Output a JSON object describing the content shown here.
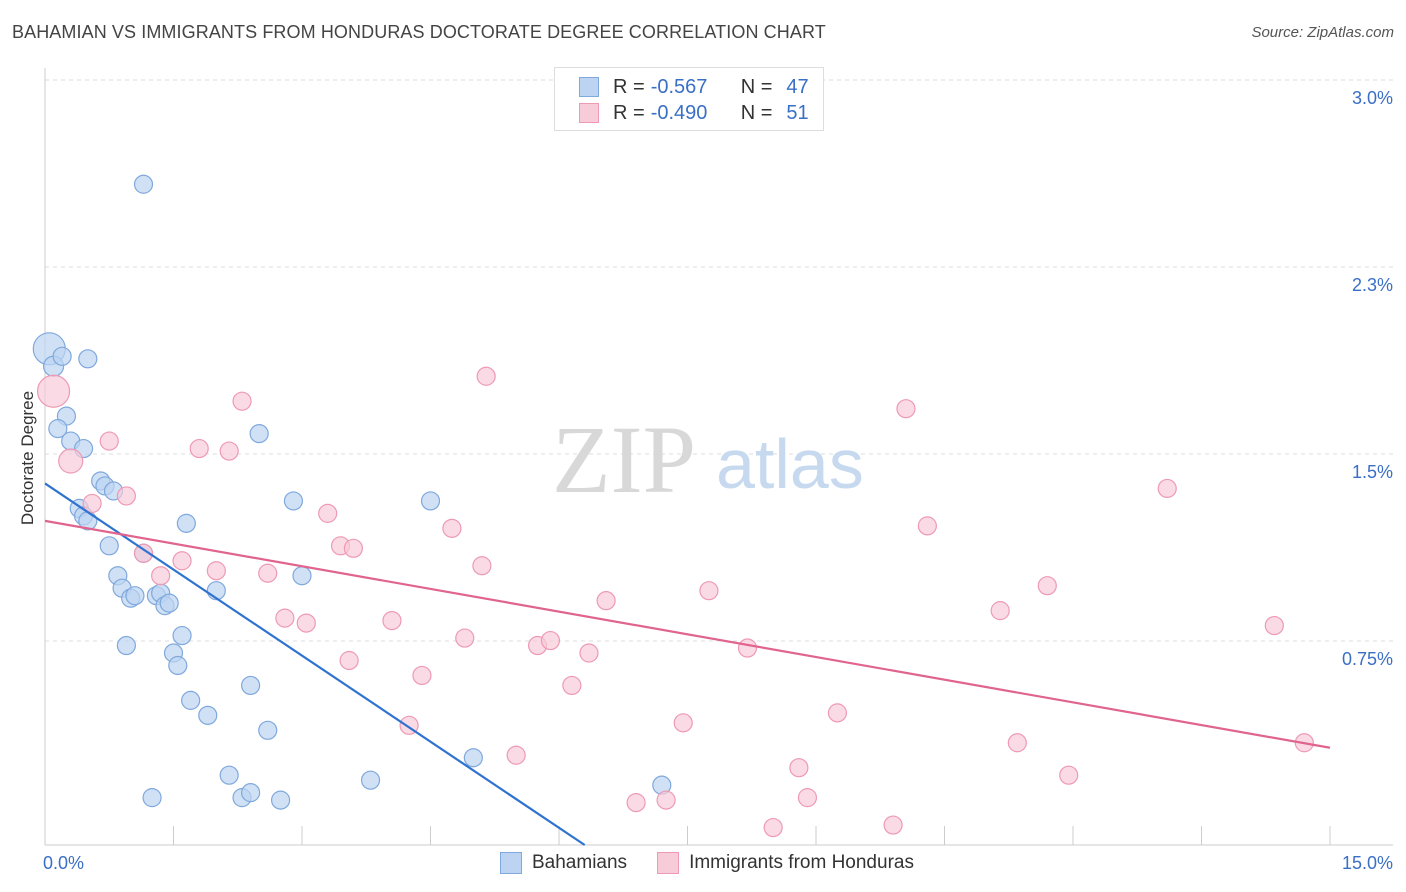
{
  "title": "BAHAMIAN VS IMMIGRANTS FROM HONDURAS DOCTORATE DEGREE CORRELATION CHART",
  "source": "Source: ZipAtlas.com",
  "watermark": {
    "zip": "ZIP",
    "atlas": "atlas"
  },
  "legend": {
    "series1": {
      "r_label": "R =",
      "r_value": "-0.567",
      "n_label": "N =",
      "n_value": "47"
    },
    "series2": {
      "r_label": "R =",
      "r_value": "-0.490",
      "n_label": "N =",
      "n_value": "51"
    }
  },
  "colors": {
    "blue_fill": "#bcd4f2",
    "blue_stroke": "#7fa8dc",
    "blue_line": "#2f73d0",
    "pink_fill": "#f8cbd8",
    "pink_stroke": "#ee9ab4",
    "pink_line": "#e0648e",
    "axis_text": "#3a6fc6",
    "grid": "#dddddd"
  },
  "chart_data": {
    "type": "scatter",
    "title": "BAHAMIAN VS IMMIGRANTS FROM HONDURAS DOCTORATE DEGREE CORRELATION CHART",
    "xlabel": "",
    "ylabel": "Doctorate Degree",
    "xlim": [
      0,
      15
    ],
    "ylim": [
      0,
      3.1
    ],
    "x_tick_labels": [
      {
        "value": 0,
        "label": "0.0%"
      },
      {
        "value": 15,
        "label": "15.0%"
      }
    ],
    "y_tick_labels": [
      {
        "value": 0.75,
        "label": "0.75%"
      },
      {
        "value": 1.5,
        "label": "1.5%"
      },
      {
        "value": 2.25,
        "label": "2.3%"
      },
      {
        "value": 3.0,
        "label": "3.0%"
      }
    ],
    "series": [
      {
        "name": "Bahamians",
        "trendline": {
          "x": [
            0,
            6.3
          ],
          "y": [
            1.45,
            0.0
          ]
        },
        "points": [
          [
            0.05,
            1.99,
            16
          ],
          [
            0.1,
            1.92,
            10
          ],
          [
            0.2,
            1.96,
            9
          ],
          [
            0.25,
            1.72,
            9
          ],
          [
            0.15,
            1.67,
            9
          ],
          [
            0.3,
            1.62,
            9
          ],
          [
            0.5,
            1.95,
            9
          ],
          [
            0.45,
            1.59,
            9
          ],
          [
            0.65,
            1.46,
            9
          ],
          [
            0.7,
            1.44,
            9
          ],
          [
            0.8,
            1.42,
            9
          ],
          [
            0.4,
            1.35,
            9
          ],
          [
            0.45,
            1.32,
            9
          ],
          [
            0.5,
            1.3,
            9
          ],
          [
            0.75,
            1.2,
            9
          ],
          [
            1.15,
            2.65,
            9
          ],
          [
            1.15,
            1.17,
            9
          ],
          [
            0.85,
            1.08,
            9
          ],
          [
            0.9,
            1.03,
            9
          ],
          [
            1.0,
            0.99,
            9
          ],
          [
            1.05,
            1.0,
            9
          ],
          [
            1.3,
            1.0,
            9
          ],
          [
            1.35,
            1.01,
            9
          ],
          [
            1.4,
            0.96,
            9
          ],
          [
            1.45,
            0.97,
            9
          ],
          [
            0.95,
            0.8,
            9
          ],
          [
            1.6,
            0.84,
            9
          ],
          [
            1.65,
            1.29,
            9
          ],
          [
            1.5,
            0.77,
            9
          ],
          [
            1.55,
            0.72,
            9
          ],
          [
            1.7,
            0.58,
            9
          ],
          [
            1.9,
            0.52,
            9
          ],
          [
            2.0,
            1.02,
            9
          ],
          [
            2.4,
            0.64,
            9
          ],
          [
            2.5,
            1.65,
            9
          ],
          [
            2.6,
            0.46,
            9
          ],
          [
            2.9,
            1.38,
            9
          ],
          [
            3.0,
            1.08,
            9
          ],
          [
            2.15,
            0.28,
            9
          ],
          [
            2.3,
            0.19,
            9
          ],
          [
            2.4,
            0.21,
            9
          ],
          [
            2.75,
            0.18,
            9
          ],
          [
            1.25,
            0.19,
            9
          ],
          [
            3.8,
            0.26,
            9
          ],
          [
            4.5,
            1.38,
            9
          ],
          [
            5.0,
            0.35,
            9
          ],
          [
            7.2,
            0.24,
            9
          ]
        ]
      },
      {
        "name": "Immigrants from Honduras",
        "trendline": {
          "x": [
            0,
            15
          ],
          "y": [
            1.3,
            0.39
          ]
        },
        "points": [
          [
            0.1,
            1.82,
            16
          ],
          [
            0.3,
            1.54,
            12
          ],
          [
            0.55,
            1.37,
            9
          ],
          [
            0.75,
            1.62,
            9
          ],
          [
            0.95,
            1.4,
            9
          ],
          [
            1.15,
            1.17,
            9
          ],
          [
            1.6,
            1.14,
            9
          ],
          [
            1.35,
            1.08,
            9
          ],
          [
            1.8,
            1.59,
            9
          ],
          [
            2.0,
            1.1,
            9
          ],
          [
            2.15,
            1.58,
            9
          ],
          [
            2.3,
            1.78,
            9
          ],
          [
            2.6,
            1.09,
            9
          ],
          [
            2.8,
            0.91,
            9
          ],
          [
            3.05,
            0.89,
            9
          ],
          [
            3.3,
            1.33,
            9
          ],
          [
            3.45,
            1.2,
            9
          ],
          [
            3.6,
            1.19,
            9
          ],
          [
            3.55,
            0.74,
            9
          ],
          [
            4.05,
            0.9,
            9
          ],
          [
            4.25,
            0.48,
            9
          ],
          [
            4.4,
            0.68,
            9
          ],
          [
            4.75,
            1.27,
            9
          ],
          [
            4.9,
            0.83,
            9
          ],
          [
            5.1,
            1.12,
            9
          ],
          [
            5.15,
            1.88,
            9
          ],
          [
            5.5,
            0.36,
            9
          ],
          [
            5.75,
            0.8,
            9
          ],
          [
            5.9,
            0.82,
            9
          ],
          [
            6.15,
            0.64,
            9
          ],
          [
            6.35,
            0.77,
            9
          ],
          [
            6.55,
            0.98,
            9
          ],
          [
            6.9,
            0.17,
            9
          ],
          [
            7.25,
            0.18,
            9
          ],
          [
            7.45,
            0.49,
            9
          ],
          [
            7.75,
            1.02,
            9
          ],
          [
            8.2,
            0.79,
            9
          ],
          [
            8.5,
            0.07,
            9
          ],
          [
            8.8,
            0.31,
            9
          ],
          [
            8.9,
            0.19,
            9
          ],
          [
            9.25,
            0.53,
            9
          ],
          [
            9.9,
            0.08,
            9
          ],
          [
            10.05,
            1.75,
            9
          ],
          [
            10.3,
            1.28,
            9
          ],
          [
            11.15,
            0.94,
            9
          ],
          [
            11.35,
            0.41,
            9
          ],
          [
            11.7,
            1.04,
            9
          ],
          [
            11.95,
            0.28,
            9
          ],
          [
            13.1,
            1.43,
            9
          ],
          [
            14.35,
            0.88,
            9
          ],
          [
            14.7,
            0.41,
            9
          ]
        ]
      }
    ]
  },
  "bottom_legend": {
    "series1": "Bahamians",
    "series2": "Immigrants from Honduras"
  }
}
